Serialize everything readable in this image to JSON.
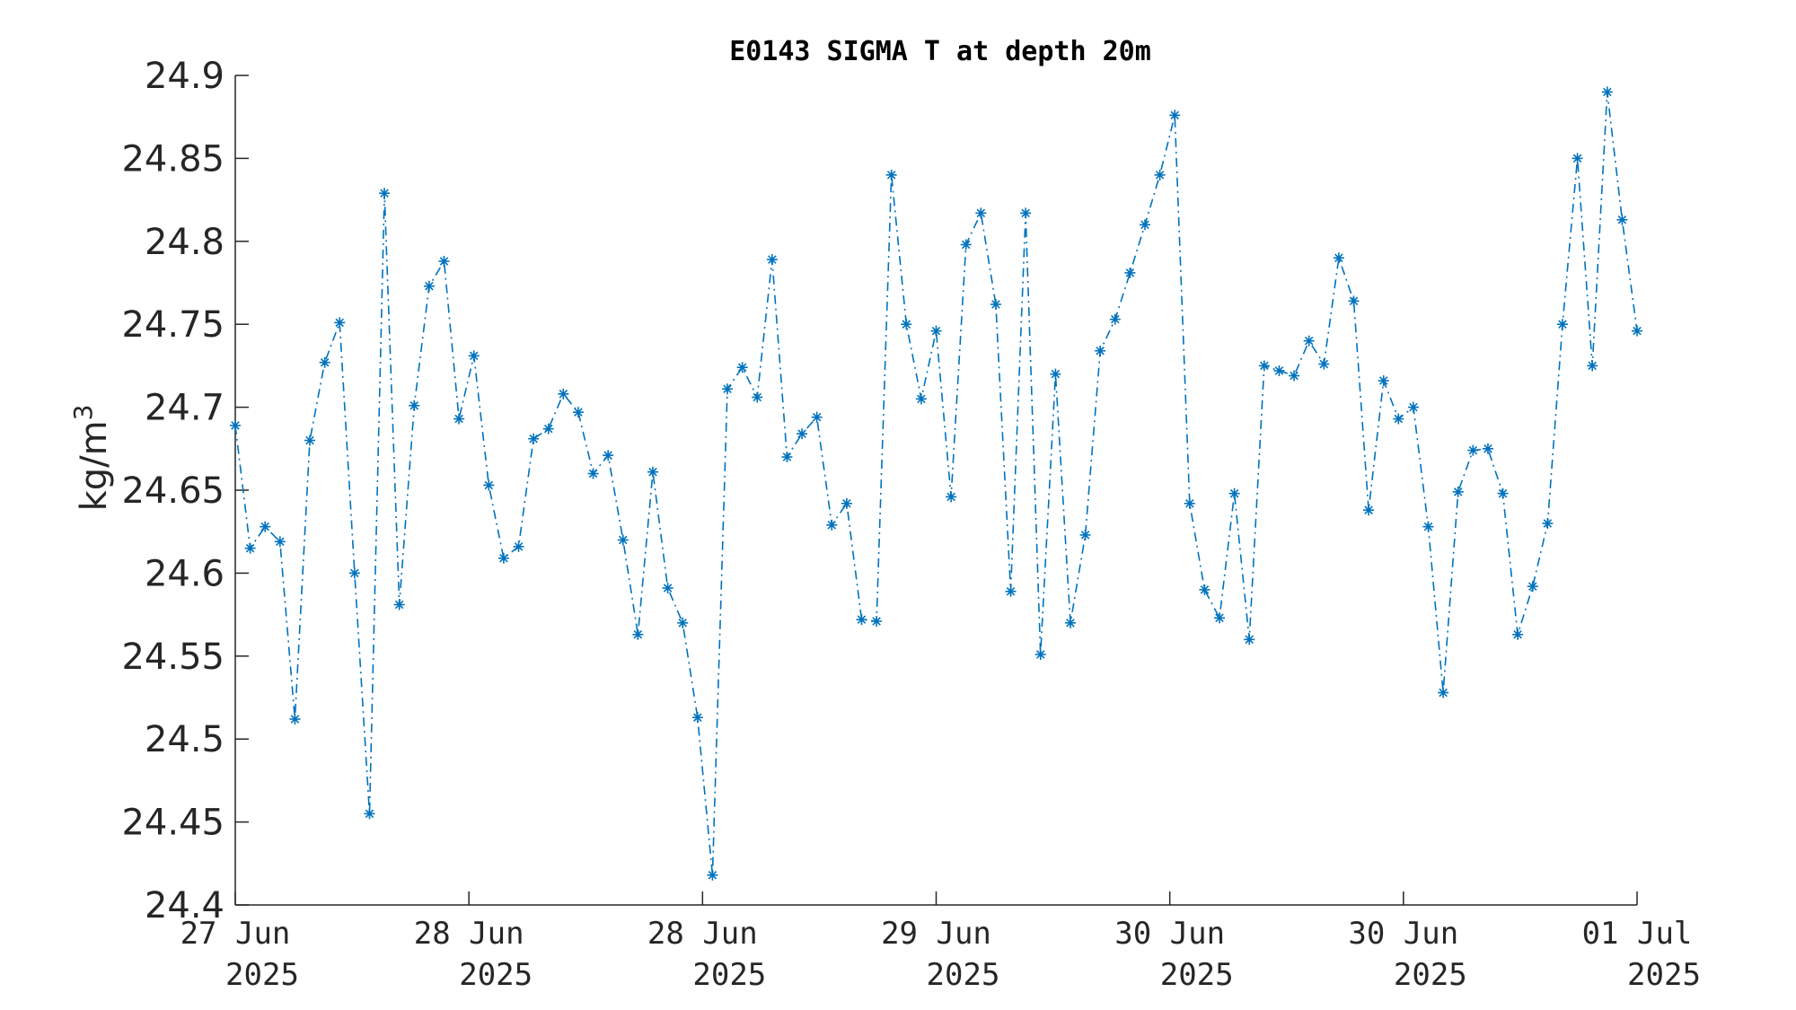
{
  "chart_data": {
    "type": "line",
    "title": "E0143 SIGMA T at depth 20m",
    "ylabel": "kg/m",
    "ylabel_superscript": "3",
    "xlabel": "",
    "ylim": [
      24.4,
      24.9
    ],
    "y_ticks": [
      "24.4",
      "24.45",
      "24.5",
      "24.55",
      "24.6",
      "24.65",
      "24.7",
      "24.75",
      "24.8",
      "24.85",
      "24.9"
    ],
    "x_ticks": [
      {
        "line1": "27 Jun",
        "line2": "2025"
      },
      {
        "line1": "28 Jun",
        "line2": "2025"
      },
      {
        "line1": "28 Jun",
        "line2": "2025"
      },
      {
        "line1": "29 Jun",
        "line2": "2025"
      },
      {
        "line1": "30 Jun",
        "line2": "2025"
      },
      {
        "line1": "30 Jun",
        "line2": "2025"
      },
      {
        "line1": "01 Jul",
        "line2": "2025"
      }
    ],
    "grid": false,
    "marker": "asterisk",
    "line_style": "dash-dot",
    "color": "#0072bd",
    "series": [
      {
        "values": [
          24.689,
          24.615,
          24.628,
          24.619,
          24.512,
          24.68,
          24.727,
          24.751,
          24.6,
          24.455,
          24.829,
          24.581,
          24.701,
          24.773,
          24.788,
          24.693,
          24.731,
          24.653,
          24.609,
          24.616,
          24.681,
          24.687,
          24.708,
          24.697,
          24.66,
          24.671,
          24.62,
          24.563,
          24.661,
          24.591,
          24.57,
          24.513,
          24.418,
          24.711,
          24.724,
          24.706,
          24.789,
          24.67,
          24.684,
          24.694,
          24.629,
          24.642,
          24.572,
          24.571,
          24.84,
          24.75,
          24.705,
          24.746,
          24.646,
          24.798,
          24.817,
          24.762,
          24.589,
          24.817,
          24.551,
          24.72,
          24.57,
          24.623,
          24.734,
          24.753,
          24.781,
          24.81,
          24.84,
          24.876,
          24.642,
          24.59,
          24.573,
          24.648,
          24.56,
          24.725,
          24.722,
          24.719,
          24.74,
          24.726,
          24.79,
          24.764,
          24.638,
          24.716,
          24.693,
          24.7,
          24.628,
          24.528,
          24.649,
          24.674,
          24.675,
          24.648,
          24.563,
          24.592,
          24.63,
          24.75,
          24.85,
          24.725,
          24.89,
          24.813,
          24.746
        ]
      }
    ]
  }
}
